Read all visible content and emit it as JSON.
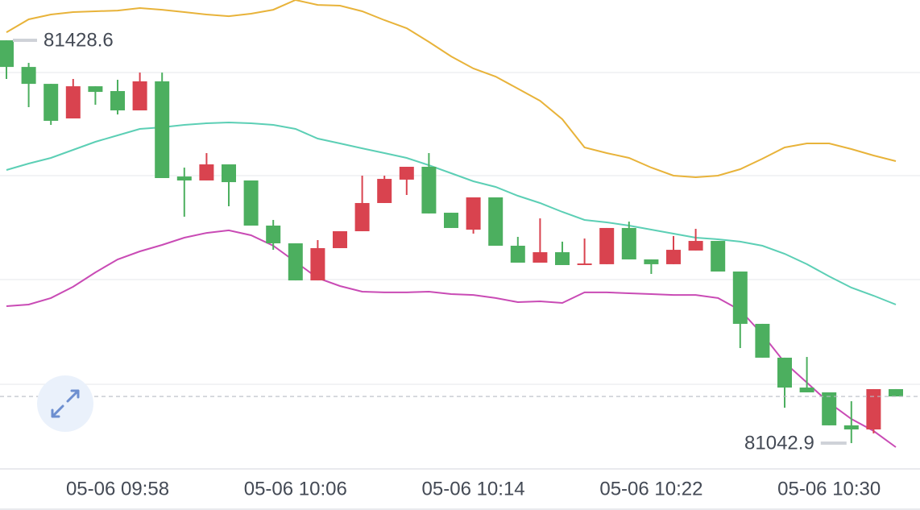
{
  "chart_data": {
    "type": "candlestick",
    "categories": [
      null,
      null,
      null,
      null,
      null,
      "05-06 09:58",
      null,
      null,
      null,
      null,
      null,
      null,
      null,
      "05-06 10:06",
      null,
      null,
      null,
      null,
      null,
      null,
      null,
      "05-06 10:14",
      null,
      null,
      null,
      null,
      null,
      null,
      null,
      "05-06 10:22",
      null,
      null,
      null,
      null,
      null,
      null,
      null,
      "05-06 10:30",
      null,
      null,
      null
    ],
    "open": [
      81428.6,
      81403.1,
      81386.9,
      81353.8,
      81384.6,
      81380.0,
      81361.5,
      81389.3,
      81298.2,
      81294.4,
      81309.8,
      81294.4,
      81251.2,
      81234.2,
      81198.7,
      81229.6,
      81245.8,
      81272.8,
      81295.2,
      81307.5,
      81263.5,
      81247.3,
      81278.2,
      81231.9,
      81215.7,
      81225.7,
      81213.4,
      81214.2,
      81248.9,
      81218.8,
      81214.2,
      81227.3,
      81236.5,
      81207.2,
      81157.1,
      81124.7,
      81096.1,
      81091.5,
      81059.9,
      81056.0,
      81094.6
    ],
    "high": [
      81428.6,
      81407.0,
      81386.9,
      81391.6,
      81384.6,
      81390.8,
      81397.7,
      81397.7,
      81306.7,
      81320.6,
      81309.8,
      81294.4,
      81256.6,
      81234.2,
      81237.3,
      81245.8,
      81299.0,
      81299.0,
      81307.5,
      81320.6,
      81263.5,
      81278.2,
      81278.2,
      81240.4,
      81258.1,
      81235.8,
      81238.8,
      81248.9,
      81255.0,
      81218.8,
      81241.2,
      81248.1,
      81236.5,
      81207.2,
      81157.1,
      81124.7,
      81125.4,
      81091.5,
      81083.0,
      81094.6,
      81094.6
    ],
    "low": [
      81391.6,
      81364.6,
      81347.6,
      81353.8,
      81366.9,
      81357.6,
      81361.5,
      81296.7,
      81259.7,
      81294.4,
      81269.7,
      81251.2,
      81228.0,
      81198.7,
      81198.7,
      81229.6,
      81245.8,
      81272.8,
      81280.5,
      81262.8,
      81248.9,
      81243.5,
      81231.9,
      81215.7,
      81215.7,
      81213.4,
      81213.4,
      81214.2,
      81218.8,
      81204.9,
      81214.2,
      81227.3,
      81207.2,
      81133.9,
      81124.7,
      81076.8,
      81091.5,
      81059.9,
      81042.9,
      81052.2,
      81087.6
    ],
    "close": [
      81403.1,
      81386.9,
      81351.5,
      81384.6,
      81379.2,
      81361.5,
      81389.3,
      81296.7,
      81294.4,
      81309.8,
      81292.8,
      81251.2,
      81234.2,
      81198.7,
      81229.6,
      81245.8,
      81272.8,
      81295.9,
      81307.5,
      81262.8,
      81248.9,
      81278.2,
      81231.9,
      81215.7,
      81225.7,
      81213.4,
      81214.9,
      81248.9,
      81218.8,
      81214.2,
      81228.0,
      81236.5,
      81207.2,
      81157.1,
      81124.7,
      81096.1,
      81091.5,
      81059.9,
      81056.0,
      81094.6,
      81087.6
    ],
    "up_color": "#d9434f",
    "down_color": "#4caf5f",
    "bands": [
      {
        "color": "#e8b33a",
        "values": [
          81436.3,
          81448.7,
          81453.3,
          81455.6,
          81456.4,
          81457.1,
          81459.5,
          81457.9,
          81455.6,
          81453.3,
          81451.7,
          81454.1,
          81457.9,
          81467.2,
          81462.5,
          81461.8,
          81456.4,
          81447.9,
          81440.2,
          81427.1,
          81413.2,
          81401.6,
          81393.9,
          81382.3,
          81370.7,
          81353.0,
          81326.0,
          81320.6,
          81316.0,
          81306.7,
          81299.0,
          81297.5,
          81299.0,
          81305.2,
          81315.2,
          81326.0,
          81329.9,
          81329.9,
          81324.5,
          81318.3,
          81312.9
        ]
      },
      {
        "color": "#5ccfb5",
        "values": [
          81304.4,
          81310.6,
          81316.0,
          81323.7,
          81331.4,
          81337.6,
          81343.8,
          81345.3,
          81347.6,
          81349.2,
          81349.9,
          81349.2,
          81347.6,
          81343.8,
          81334.5,
          81329.9,
          81325.2,
          81320.6,
          81316.0,
          81309.0,
          81301.3,
          81293.6,
          81288.2,
          81279.7,
          81272.8,
          81264.3,
          81256.6,
          81254.3,
          81251.2,
          81247.3,
          81243.5,
          81239.6,
          81238.1,
          81235.8,
          81231.9,
          81224.2,
          81214.2,
          81202.6,
          81191.8,
          81184.1,
          81175.6
        ]
      },
      {
        "color": "#c94bb5",
        "values": [
          81174.0,
          81175.6,
          81181.8,
          81192.6,
          81206.4,
          81218.8,
          81226.5,
          81232.7,
          81239.6,
          81244.2,
          81246.6,
          81241.9,
          81231.9,
          81216.5,
          81201.0,
          81193.3,
          81187.9,
          81187.2,
          81187.2,
          81187.9,
          81185.6,
          81184.8,
          81181.8,
          81177.9,
          81178.7,
          81177.1,
          81187.2,
          81187.2,
          81186.4,
          81185.6,
          81184.8,
          81184.8,
          81181.8,
          81170.2,
          81147.0,
          81120.0,
          81100.8,
          81081.5,
          81066.0,
          81054.5,
          81039.0
        ]
      }
    ],
    "high_label": 81428.6,
    "low_label": 81042.9,
    "ylim": [
      81018.2,
      81467.2
    ]
  }
}
